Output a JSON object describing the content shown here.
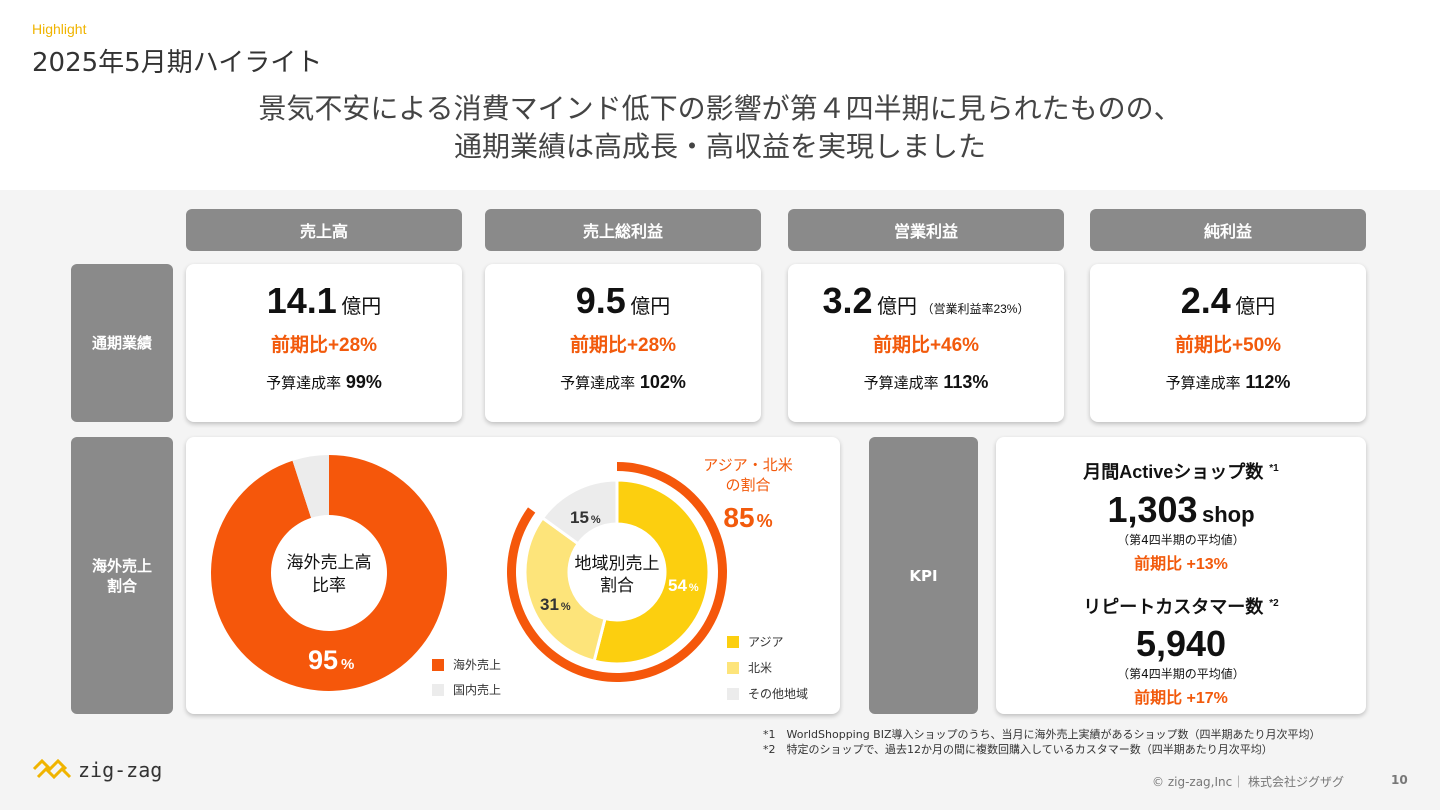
{
  "header": {
    "eyebrow": "Highlight",
    "title": "2025年5月期ハイライト",
    "headline_line1": "景気不安による消費マインド低下の影響が第４四半期に見られたものの、",
    "headline_line2": "通期業績は高成長・高収益を実現しました"
  },
  "columns": [
    "売上高",
    "売上総利益",
    "営業利益",
    "純利益"
  ],
  "rows": {
    "full_year": "通期業績",
    "overseas_line1": "海外売上",
    "overseas_line2": "割合"
  },
  "metrics": [
    {
      "value": "14.1",
      "unit": "億円",
      "note": "",
      "growth": "前期比+28%",
      "budget_label": "予算達成率",
      "budget": "99%"
    },
    {
      "value": "9.5",
      "unit": "億円",
      "note": "",
      "growth": "前期比+28%",
      "budget_label": "予算達成率",
      "budget": "102%"
    },
    {
      "value": "3.2",
      "unit": "億円",
      "note": "（営業利益率23%）",
      "growth": "前期比+46%",
      "budget_label": "予算達成率",
      "budget": "113%"
    },
    {
      "value": "2.4",
      "unit": "億円",
      "note": "",
      "growth": "前期比+50%",
      "budget_label": "予算達成率",
      "budget": "112%"
    }
  ],
  "overseas_donut": {
    "center_line1": "海外売上高",
    "center_line2": "比率",
    "label_value": "95",
    "label_unit": "%",
    "legend": [
      {
        "label": "海外売上",
        "color": "#f5570b"
      },
      {
        "label": "国内売上",
        "color": "#ececec"
      }
    ]
  },
  "region_donut": {
    "center_line1": "地域別売上",
    "center_line2": "割合",
    "labels": [
      {
        "value": "54",
        "unit": "%"
      },
      {
        "value": "31",
        "unit": "%"
      },
      {
        "value": "15",
        "unit": "%"
      }
    ],
    "callout_line1": "アジア・北米",
    "callout_line2": "の割合",
    "callout_value": "85",
    "callout_unit": "%",
    "legend": [
      {
        "label": "アジア",
        "color": "#fccf0f"
      },
      {
        "label": "北米",
        "color": "#fde47a"
      },
      {
        "label": "その他地域",
        "color": "#ececec"
      }
    ]
  },
  "chart_data": [
    {
      "type": "pie",
      "title": "海外売上高比率",
      "categories": [
        "海外売上",
        "国内売上"
      ],
      "values": [
        95,
        5
      ],
      "colors": [
        "#f5570b",
        "#ececec"
      ]
    },
    {
      "type": "pie",
      "title": "地域別売上割合",
      "categories": [
        "アジア",
        "北米",
        "その他地域"
      ],
      "values": [
        54,
        31,
        15
      ],
      "colors": [
        "#fccf0f",
        "#fde47a",
        "#ececec"
      ],
      "outer_ring": {
        "label": "アジア・北米の割合",
        "value": 85,
        "color": "#f5570b"
      }
    }
  ],
  "kpi": {
    "label": "KPI",
    "shops_title": "月間Activeショップ数",
    "shops_mark": "*1",
    "shops_value": "1,303",
    "shops_unit": "shop",
    "shops_sub": "（第4四半期の平均値）",
    "shops_growth": "前期比 +13%",
    "repeat_title": "リピートカスタマー数",
    "repeat_mark": "*2",
    "repeat_value": "5,940",
    "repeat_sub": "（第4四半期の平均値）",
    "repeat_growth": "前期比 +17%"
  },
  "footnotes": [
    "*1　WorldShopping BIZ導入ショップのうち、当月に海外売上実績があるショップ数（四半期あたり月次平均）",
    "*2　特定のショップで、過去12か月の間に複数回購入しているカスタマー数（四半期あたり月次平均）"
  ],
  "footer": {
    "logo_text": "zig-zag",
    "copyright": "© zig-zag,Inc｜ 株式会社ジグザグ",
    "page": "10"
  },
  "colors": {
    "accent_orange": "#f25a0c",
    "yellow": "#fccf0f",
    "gray_header": "#8a8a8a"
  }
}
